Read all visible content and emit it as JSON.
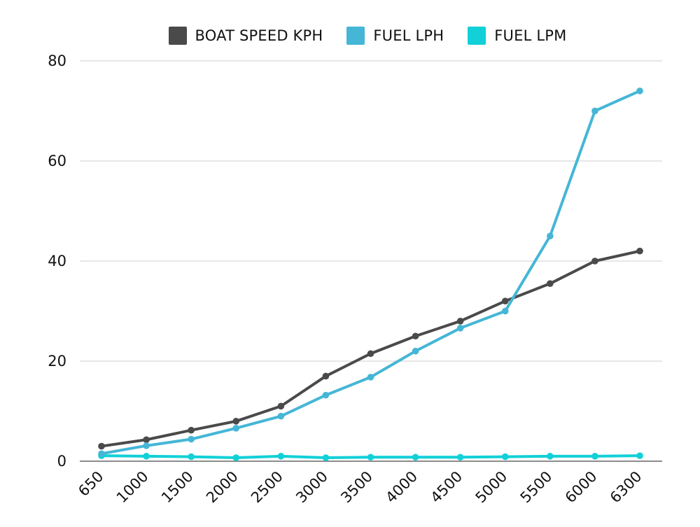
{
  "chart_data": {
    "type": "line",
    "categories": [
      "650",
      "1000",
      "1500",
      "2000",
      "2500",
      "3000",
      "3500",
      "4000",
      "4500",
      "5000",
      "5500",
      "6000",
      "6300"
    ],
    "series": [
      {
        "name": "BOAT SPEED KPH",
        "color": "#4a4a4a",
        "values": [
          3,
          4.3,
          6.2,
          8,
          11,
          17,
          21.5,
          25,
          28,
          32,
          35.5,
          40,
          42
        ]
      },
      {
        "name": "FUEL LPH",
        "color": "#45b6d6",
        "values": [
          1.5,
          3.1,
          4.4,
          6.6,
          9,
          13.2,
          16.8,
          22,
          26.6,
          30,
          45,
          70,
          74
        ]
      },
      {
        "name": "FUEL LPM",
        "color": "#12d0d8",
        "values": [
          1.1,
          1.0,
          0.9,
          0.7,
          1.0,
          0.7,
          0.8,
          0.8,
          0.8,
          0.9,
          1.0,
          1.0,
          1.1
        ]
      }
    ],
    "yticks": [
      0,
      20,
      40,
      60,
      80
    ],
    "ylim": [
      0,
      80
    ],
    "grid": true,
    "legend_position": "top-center",
    "title": "",
    "xlabel": "",
    "ylabel": ""
  }
}
